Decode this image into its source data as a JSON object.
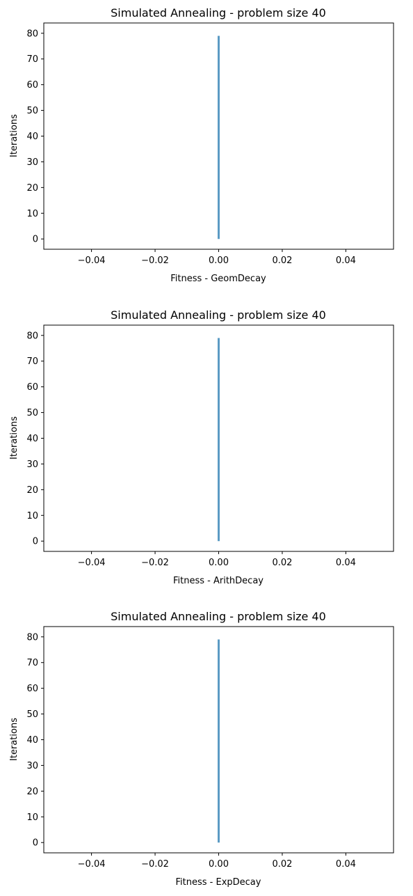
{
  "chart_data": [
    {
      "type": "line",
      "title": "Simulated Annealing - problem size 40",
      "xlabel": "Fitness - GeomDecay",
      "ylabel": "Iterations",
      "xlim": [
        -0.055,
        0.055
      ],
      "ylim": [
        -4,
        84
      ],
      "xticks": [
        -0.04,
        -0.02,
        0.0,
        0.02,
        0.04
      ],
      "xtick_labels": [
        "−0.04",
        "−0.02",
        "0.00",
        "0.02",
        "0.04"
      ],
      "yticks": [
        0,
        10,
        20,
        30,
        40,
        50,
        60,
        70,
        80
      ],
      "ytick_labels": [
        "0",
        "10",
        "20",
        "30",
        "40",
        "50",
        "60",
        "70",
        "80"
      ],
      "grid": false,
      "series": [
        {
          "color": "#5b9bc4",
          "x": [
            0,
            0
          ],
          "y": [
            0,
            79
          ]
        }
      ]
    },
    {
      "type": "line",
      "title": "Simulated Annealing - problem size 40",
      "xlabel": "Fitness - ArithDecay",
      "ylabel": "Iterations",
      "xlim": [
        -0.055,
        0.055
      ],
      "ylim": [
        -4,
        84
      ],
      "xticks": [
        -0.04,
        -0.02,
        0.0,
        0.02,
        0.04
      ],
      "xtick_labels": [
        "−0.04",
        "−0.02",
        "0.00",
        "0.02",
        "0.04"
      ],
      "yticks": [
        0,
        10,
        20,
        30,
        40,
        50,
        60,
        70,
        80
      ],
      "ytick_labels": [
        "0",
        "10",
        "20",
        "30",
        "40",
        "50",
        "60",
        "70",
        "80"
      ],
      "grid": false,
      "series": [
        {
          "color": "#5b9bc4",
          "x": [
            0,
            0
          ],
          "y": [
            0,
            79
          ]
        }
      ]
    },
    {
      "type": "line",
      "title": "Simulated Annealing - problem size 40",
      "xlabel": "Fitness - ExpDecay",
      "ylabel": "Iterations",
      "xlim": [
        -0.055,
        0.055
      ],
      "ylim": [
        -4,
        84
      ],
      "xticks": [
        -0.04,
        -0.02,
        0.0,
        0.02,
        0.04
      ],
      "xtick_labels": [
        "−0.04",
        "−0.02",
        "0.00",
        "0.02",
        "0.04"
      ],
      "yticks": [
        0,
        10,
        20,
        30,
        40,
        50,
        60,
        70,
        80
      ],
      "ytick_labels": [
        "0",
        "10",
        "20",
        "30",
        "40",
        "50",
        "60",
        "70",
        "80"
      ],
      "grid": false,
      "series": [
        {
          "color": "#5b9bc4",
          "x": [
            0,
            0
          ],
          "y": [
            0,
            79
          ]
        }
      ]
    }
  ]
}
